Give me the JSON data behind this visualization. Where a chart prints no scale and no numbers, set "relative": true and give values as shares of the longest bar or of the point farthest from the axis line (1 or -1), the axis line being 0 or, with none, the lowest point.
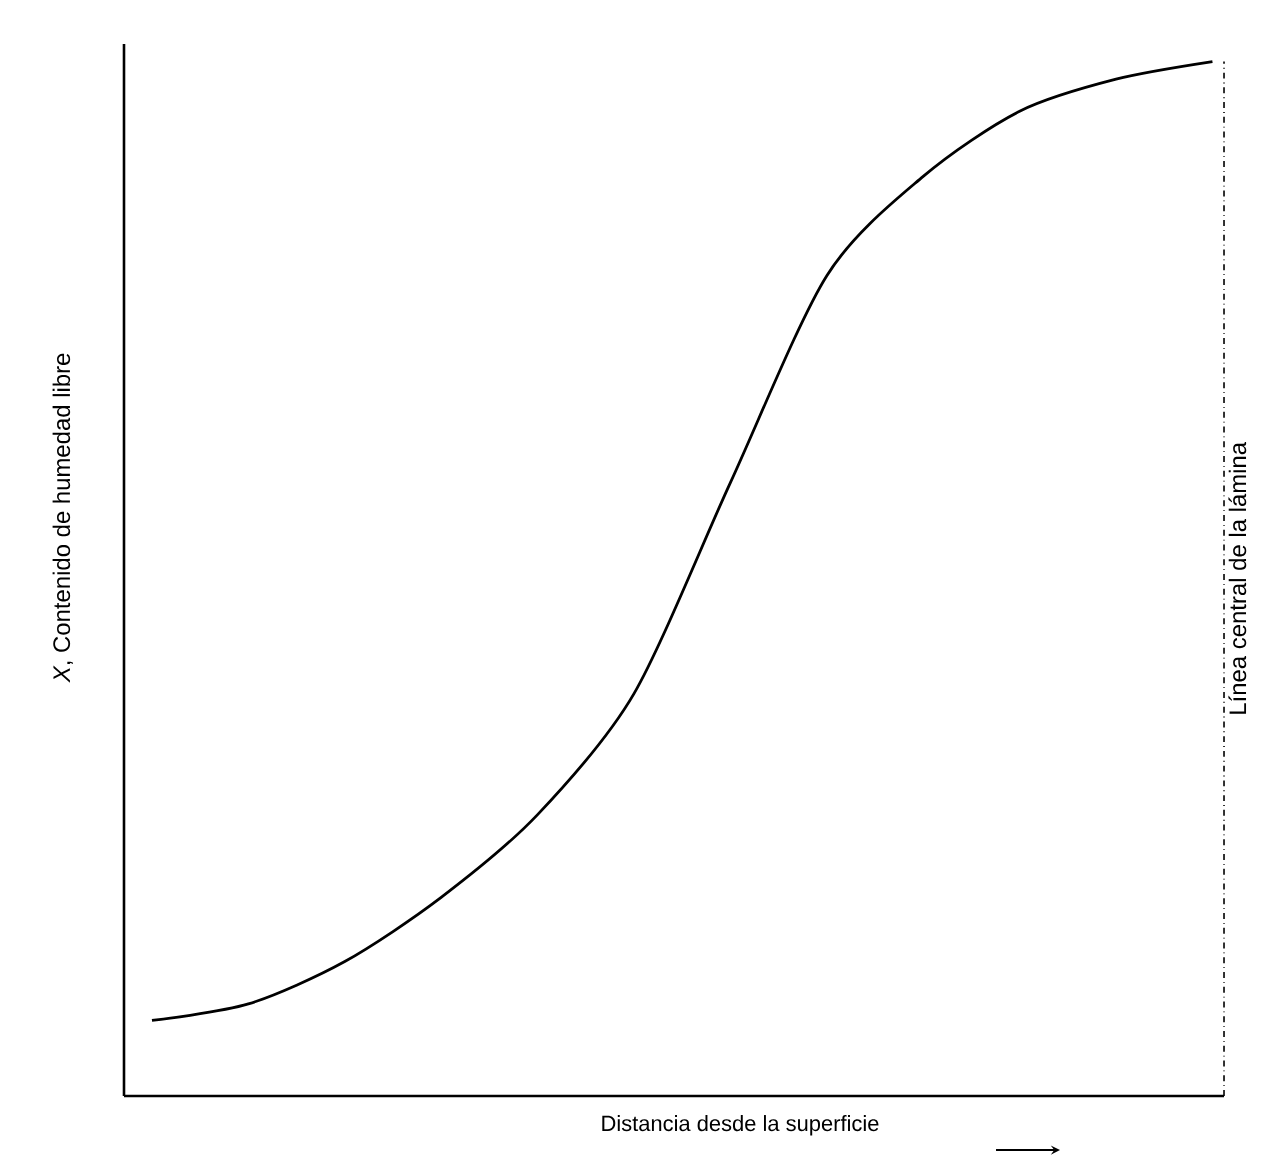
{
  "chart_data": {
    "type": "line",
    "relative": true,
    "xlabel": "Distancia desde la superficie",
    "ylabel": "*X*, Contenido de humedad libre",
    "categories": [
      null,
      null,
      null,
      null,
      null,
      null,
      null,
      null,
      null,
      null,
      null,
      null
    ],
    "values": [
      0.073,
      0.089,
      0.13,
      0.192,
      0.272,
      0.389,
      0.593,
      0.793,
      0.889,
      0.952,
      0.983,
      1
    ],
    "color": "#000000",
    "ref_lines": [
      {
        "axis": "x",
        "label": "Línea central de la lámina",
        "line_style": "dashdot"
      }
    ]
  }
}
